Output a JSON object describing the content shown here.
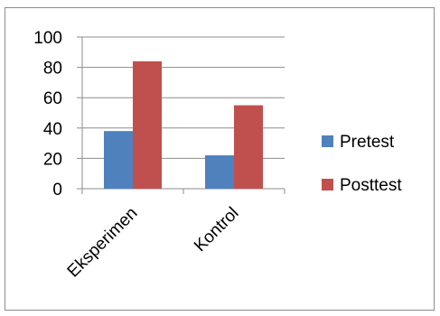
{
  "chart_data": {
    "type": "bar",
    "categories": [
      "Eksperimen",
      "Kontrol"
    ],
    "series": [
      {
        "name": "Pretest",
        "values": [
          38,
          22
        ],
        "color": "#4f81bd"
      },
      {
        "name": "Posttest",
        "values": [
          84,
          55
        ],
        "color": "#c0504d"
      }
    ],
    "ylim": [
      0,
      100
    ],
    "yticks": [
      0,
      20,
      40,
      60,
      80,
      100
    ],
    "grid": true,
    "legend_position": "right",
    "title": "",
    "xlabel": "",
    "ylabel": ""
  }
}
